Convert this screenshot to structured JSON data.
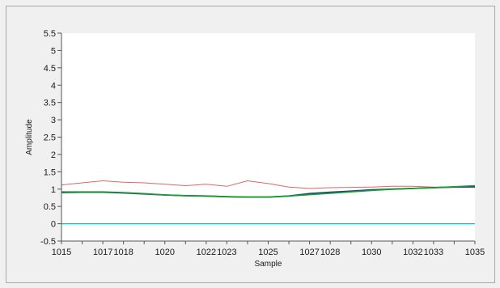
{
  "chart_data": {
    "type": "line",
    "xlabel": "Sample",
    "ylabel": "Amplitude",
    "xlim": [
      1015,
      1035
    ],
    "ylim": [
      -0.5,
      5.5
    ],
    "grid": false,
    "legend": "none",
    "yticks": [
      "5.5",
      "5",
      "4.5",
      "4",
      "3.5",
      "3",
      "2.5",
      "2",
      "1.5",
      "1",
      "0.5",
      "0",
      "-0.5"
    ],
    "xticks": [
      "1015",
      "1017",
      "1018",
      "1020",
      "1022",
      "1023",
      "1025",
      "1027",
      "1028",
      "1030",
      "1032",
      "1033",
      "1035"
    ],
    "colors": {
      "plot_bg": "#ffffff",
      "axis": "#555555",
      "red_series": "#e06666",
      "blue_series": "#1f3f8f",
      "green_series": "#1a9e2a",
      "cyan_series": "#00bcd4"
    },
    "series": [
      {
        "x": [
          1015,
          1016,
          1017,
          1018,
          1019,
          1020,
          1021,
          1022,
          1023,
          1024,
          1025,
          1026,
          1027,
          1028,
          1029,
          1030,
          1031,
          1032,
          1033,
          1034,
          1035
        ],
        "values": [
          1.12,
          1.18,
          1.24,
          1.2,
          1.18,
          1.14,
          1.1,
          1.14,
          1.08,
          1.24,
          1.16,
          1.06,
          1.02,
          1.04,
          1.05,
          1.06,
          1.08,
          1.08,
          1.06,
          1.06,
          1.05
        ]
      },
      {
        "x": [
          1015,
          1016,
          1017,
          1018,
          1019,
          1020,
          1021,
          1022,
          1023,
          1024,
          1025,
          1026,
          1027,
          1028,
          1029,
          1030,
          1031,
          1032,
          1033,
          1034,
          1035
        ],
        "values": [
          0.9,
          0.91,
          0.91,
          0.89,
          0.86,
          0.83,
          0.81,
          0.8,
          0.78,
          0.77,
          0.77,
          0.8,
          0.87,
          0.91,
          0.94,
          0.98,
          1.0,
          1.02,
          1.04,
          1.06,
          1.07
        ]
      },
      {
        "x": [
          1015,
          1016,
          1017,
          1018,
          1019,
          1020,
          1021,
          1022,
          1023,
          1024,
          1025,
          1026,
          1027,
          1028,
          1029,
          1030,
          1031,
          1032,
          1033,
          1034,
          1035
        ],
        "values": [
          0.92,
          0.92,
          0.92,
          0.9,
          0.87,
          0.83,
          0.81,
          0.8,
          0.78,
          0.77,
          0.77,
          0.8,
          0.84,
          0.88,
          0.92,
          0.96,
          1.0,
          1.02,
          1.04,
          1.07,
          1.1
        ]
      },
      {
        "x": [
          1015,
          1035
        ],
        "values": [
          0,
          0
        ]
      }
    ]
  }
}
